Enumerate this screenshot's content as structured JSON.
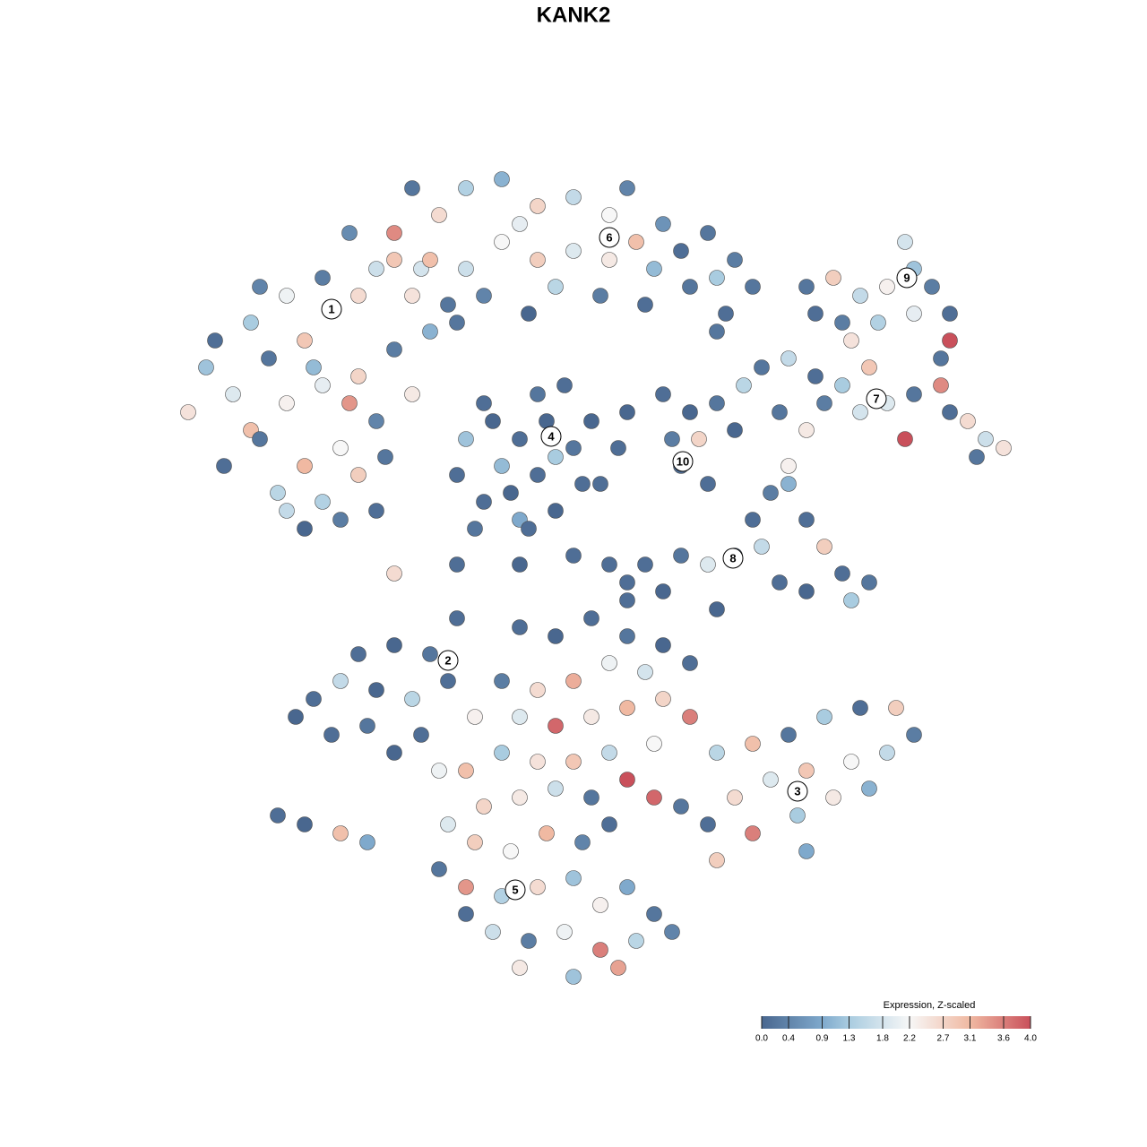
{
  "chart_data": {
    "type": "scatter",
    "title": "KANK2",
    "xlim": [
      -32,
      32
    ],
    "ylim": [
      -32,
      32
    ],
    "x": [
      -13.5,
      -12,
      -15,
      -17,
      -19,
      -20.5,
      -21.5,
      -18,
      -16,
      -14,
      -12,
      -10,
      -8,
      -9,
      -11,
      -13,
      -15,
      -16.5,
      -17.5,
      -19.5,
      -14,
      -12,
      -10.5,
      -11,
      -13,
      -15,
      -16,
      -12.5,
      -14.5,
      -9,
      -11,
      -14,
      -16,
      -18,
      -20,
      -17.5,
      -10,
      -8.5,
      -7,
      -12.5,
      -10,
      -7.5,
      -6,
      -4,
      -2,
      0,
      2,
      3.5,
      5,
      6,
      7.5,
      9,
      8,
      6.5,
      4.5,
      2,
      0,
      -2,
      -4,
      -6,
      -8,
      -5,
      -1,
      1.5,
      4,
      -3,
      -9,
      3,
      8.5,
      10,
      -6.5,
      -2.5,
      13,
      14.5,
      16,
      17.5,
      19,
      20,
      21,
      19,
      17,
      15,
      13.5,
      21,
      20.5,
      18.5,
      15.5,
      10.5,
      12,
      13.5,
      15,
      16.5,
      17.5,
      19,
      20.5,
      21,
      22,
      23,
      24,
      22.5,
      18.5,
      16,
      14,
      11.5,
      9.5,
      13,
      8,
      -3,
      -1.5,
      0,
      0.5,
      -1,
      -3,
      -5,
      -6.5,
      -6,
      -4.5,
      -2,
      -0.5,
      -4,
      -2,
      -3.5,
      -5,
      1,
      -1,
      -5.5,
      -2.5,
      5,
      6.5,
      8,
      7,
      6,
      7.5,
      5.5,
      3,
      2.5,
      9,
      2,
      4,
      6,
      7.5,
      9,
      10,
      11,
      12,
      13,
      14,
      15,
      16.5,
      15.5,
      13,
      11.5,
      10.5,
      5,
      3,
      8,
      12,
      -12,
      -10,
      -8,
      -7,
      -9,
      -11,
      -13,
      -14.5,
      -15.5,
      -13.5,
      -11.5,
      -10,
      -8.5,
      -7.5,
      -16.5,
      -15,
      -13,
      -11.5,
      -6.5,
      -3,
      -1,
      1,
      3,
      5,
      6.5,
      4,
      2,
      0,
      -2,
      -4,
      -5.5,
      -3,
      -1,
      1,
      3,
      5,
      6.5,
      4.5,
      2,
      0,
      -2,
      -4,
      -6,
      -5,
      -3,
      -1,
      1,
      3,
      4.5,
      -7,
      -5.5,
      -3.5,
      -1.5,
      0.5,
      2,
      -7.5,
      -6,
      -4,
      -2,
      0,
      1.5,
      3,
      4.5,
      5.5,
      3.5,
      1.5,
      -0.5,
      -2.5,
      -4.5,
      -6,
      -3,
      0,
      2.5,
      8,
      10,
      12,
      14,
      16,
      18,
      19,
      17.5,
      15.5,
      13,
      11,
      9,
      7.5,
      10,
      12.5,
      14.5,
      16.5,
      13,
      8,
      6,
      -10,
      -6.5,
      -3,
      0,
      1.5,
      3
    ],
    "y": [
      14.8,
      15.5,
      13,
      12,
      10,
      11.5,
      9,
      8,
      9.5,
      10.5,
      11,
      12.5,
      13.5,
      10,
      8.5,
      7,
      6,
      4.5,
      7.5,
      6,
      4,
      5.5,
      6.5,
      3.5,
      3,
      2.5,
      3.5,
      9.5,
      11.5,
      15.5,
      17,
      16.5,
      15.5,
      14,
      13,
      16,
      17.5,
      17,
      15,
      19,
      19,
      20,
      21.5,
      22,
      20.5,
      21,
      20,
      18.5,
      19.5,
      18,
      19,
      17.5,
      16.5,
      16,
      17,
      17.5,
      18,
      17.5,
      18.5,
      17,
      17.5,
      15.5,
      16,
      15.5,
      15,
      19.5,
      21.5,
      21.5,
      14.5,
      16,
      14,
      14.5,
      16,
      16.5,
      15.5,
      16,
      17,
      16,
      14.5,
      14.5,
      14,
      14,
      14.5,
      13,
      12,
      18.5,
      13,
      11.5,
      12,
      11,
      10.5,
      11.5,
      9.5,
      10,
      10.5,
      9,
      8.5,
      7.5,
      7,
      6.5,
      7.5,
      9,
      9.5,
      9,
      10.5,
      8,
      13.5,
      7.5,
      8.5,
      7,
      5,
      3.5,
      3,
      4,
      5.5,
      7.5,
      8.5,
      10,
      10.5,
      6,
      5.5,
      4.5,
      9.5,
      8.5,
      6.5,
      2.5,
      2.5,
      10,
      9,
      9.5,
      7.5,
      6,
      5,
      7.5,
      9,
      7,
      8,
      0.5,
      0.5,
      1,
      0.5,
      1,
      3,
      4.5,
      6,
      3,
      1.5,
      0,
      -0.5,
      -1.5,
      -1,
      -0.5,
      1.5,
      -1,
      -1.5,
      -2,
      5,
      -4.5,
      -4,
      -4.5,
      -6,
      -7,
      -6.5,
      -6,
      -7,
      -8,
      -9,
      -8.5,
      -10,
      -9,
      -11,
      -13.5,
      -14,
      -14.5,
      -15,
      -2.5,
      -3,
      -3.5,
      -2.5,
      -3.5,
      -4,
      -5,
      -5.5,
      -5,
      -6,
      -6.5,
      -6,
      -8,
      -8,
      -8.5,
      -8,
      -7.5,
      -7,
      -8,
      -9.5,
      -10,
      -10.5,
      -10.5,
      -10,
      -11,
      -13,
      -12.5,
      -12,
      -12.5,
      -11.5,
      -12.5,
      -14,
      -15,
      -15.5,
      -14.5,
      -15,
      -14,
      -16.5,
      -17.5,
      -18,
      -17.5,
      -17,
      -18.5,
      -17.5,
      -19,
      -20,
      -20.5,
      -21,
      -20,
      -20.5,
      -20,
      -19,
      -22,
      -22.5,
      -22,
      -10,
      -9.5,
      -9,
      -8,
      -7.5,
      -7.5,
      -9,
      -10,
      -10.5,
      -11,
      -11.5,
      -12.5,
      -14,
      -14.5,
      -13.5,
      -12.5,
      -12,
      -15.5,
      -16,
      -13,
      0,
      0.5,
      0.5,
      1,
      5,
      -0.5
    ],
    "values": [
      1.6,
      2.6,
      2.9,
      0.2,
      1.9,
      1.2,
      2.5,
      3.0,
      2.3,
      2.0,
      2.7,
      0.3,
      1.0,
      2.4,
      0.4,
      2.2,
      3.1,
      1.5,
      0.2,
      0.1,
      1.4,
      2.8,
      0.2,
      0.1,
      0.3,
      0.0,
      1.6,
      3.4,
      1.1,
      2.5,
      1.7,
      0.3,
      2.1,
      1.3,
      0.1,
      0.4,
      2.9,
      1.8,
      0.2,
      0.5,
      3.5,
      2.6,
      1.4,
      1.0,
      2.7,
      1.6,
      2.2,
      3.0,
      0.6,
      0.1,
      0.2,
      0.3,
      1.3,
      0.2,
      1.1,
      2.4,
      1.9,
      2.8,
      2.2,
      1.7,
      3.0,
      0.4,
      1.5,
      0.3,
      0.1,
      2.0,
      0.2,
      0.4,
      0.1,
      0.2,
      0.2,
      0.0,
      0.2,
      2.8,
      1.6,
      2.3,
      1.2,
      0.3,
      0.1,
      2.0,
      1.4,
      0.3,
      0.1,
      4.0,
      0.2,
      1.8,
      2.5,
      0.2,
      1.6,
      0.1,
      1.3,
      2.9,
      1.9,
      0.2,
      3.5,
      0.1,
      2.6,
      1.7,
      2.5,
      0.2,
      4.0,
      1.8,
      0.3,
      0.2,
      1.5,
      2.4,
      0.2,
      0.1,
      0.0,
      0.2,
      0.1,
      0.0,
      0.9,
      0.1,
      0.1,
      1.2,
      0.0,
      0.2,
      0.1,
      1.1,
      0.1,
      0.0,
      0.1,
      0.0,
      1.3,
      0.2,
      0.1,
      0.1,
      0.0,
      0.2,
      2.7,
      0.1,
      0.1,
      0.3,
      0.0,
      0.1,
      0.0,
      0.1,
      0.1,
      0.2,
      1.9,
      0.1,
      0.1,
      0.3,
      2.3,
      0.1,
      2.8,
      0.1,
      0.2,
      1.3,
      0.0,
      0.1,
      1.6,
      0.0,
      0.1,
      0.0,
      1.0,
      0.1,
      0.0,
      0.2,
      0.1,
      1.5,
      0.0,
      1.6,
      0.1,
      0.0,
      0.1,
      0.2,
      0.0,
      0.1,
      2.1,
      0.1,
      0.0,
      3.0,
      0.9,
      0.1,
      0.1,
      0.0,
      0.1,
      0.2,
      0.0,
      0.1,
      1.8,
      2.1,
      3.2,
      2.6,
      0.3,
      2.3,
      1.9,
      3.8,
      2.4,
      3.1,
      2.7,
      3.6,
      2.2,
      1.6,
      2.9,
      2.5,
      1.3,
      3.0,
      2.7,
      2.4,
      1.7,
      0.2,
      4.0,
      3.8,
      1.9,
      2.8,
      2.2,
      3.1,
      0.4,
      0.1,
      0.2,
      3.4,
      1.4,
      2.6,
      1.2,
      2.3,
      0.9,
      0.2,
      0.4,
      1.5,
      3.6,
      2.1,
      0.3,
      1.7,
      0.1,
      2.4,
      1.2,
      3.3,
      1.5,
      3.0,
      0.2,
      1.3,
      0.1,
      2.8,
      0.3,
      1.6,
      2.2,
      2.9,
      1.9,
      2.6,
      0.1,
      3.6,
      1.3,
      2.4,
      1.0,
      0.9,
      2.8,
      0.2,
      2.6,
      0.1,
      0.0,
      0.1,
      0.1,
      0.1
    ],
    "cluster_labels": {
      "texts": [
        "1",
        "2",
        "3",
        "4",
        "5",
        "6",
        "7",
        "8",
        "9",
        "10"
      ],
      "x": [
        -13.5,
        -7,
        12.5,
        -1.25,
        -3.25,
        2,
        16.9,
        8.9,
        18.6,
        6.1
      ],
      "y": [
        14.75,
        -4.85,
        -12.15,
        7.65,
        -17.65,
        18.75,
        9.75,
        0.85,
        16.5,
        6.25
      ]
    },
    "colorbar": {
      "title": "Expression, Z-scaled",
      "lim": [
        0,
        4
      ],
      "ticks": [
        {
          "value": 0,
          "label": "0.0"
        },
        0.4,
        0.9,
        1.3,
        1.8,
        2.2,
        2.7,
        3.1,
        3.6,
        {
          "value": 4,
          "label": "4.0"
        }
      ],
      "colorscale": [
        [
          0,
          "#49678f"
        ],
        [
          0.9,
          "#7fa9cc"
        ],
        [
          1.3,
          "#a9cce0"
        ],
        [
          2.2,
          "#f7f7f7"
        ],
        [
          3.1,
          "#f0b9a2"
        ],
        [
          4,
          "#c9505b"
        ]
      ]
    }
  }
}
